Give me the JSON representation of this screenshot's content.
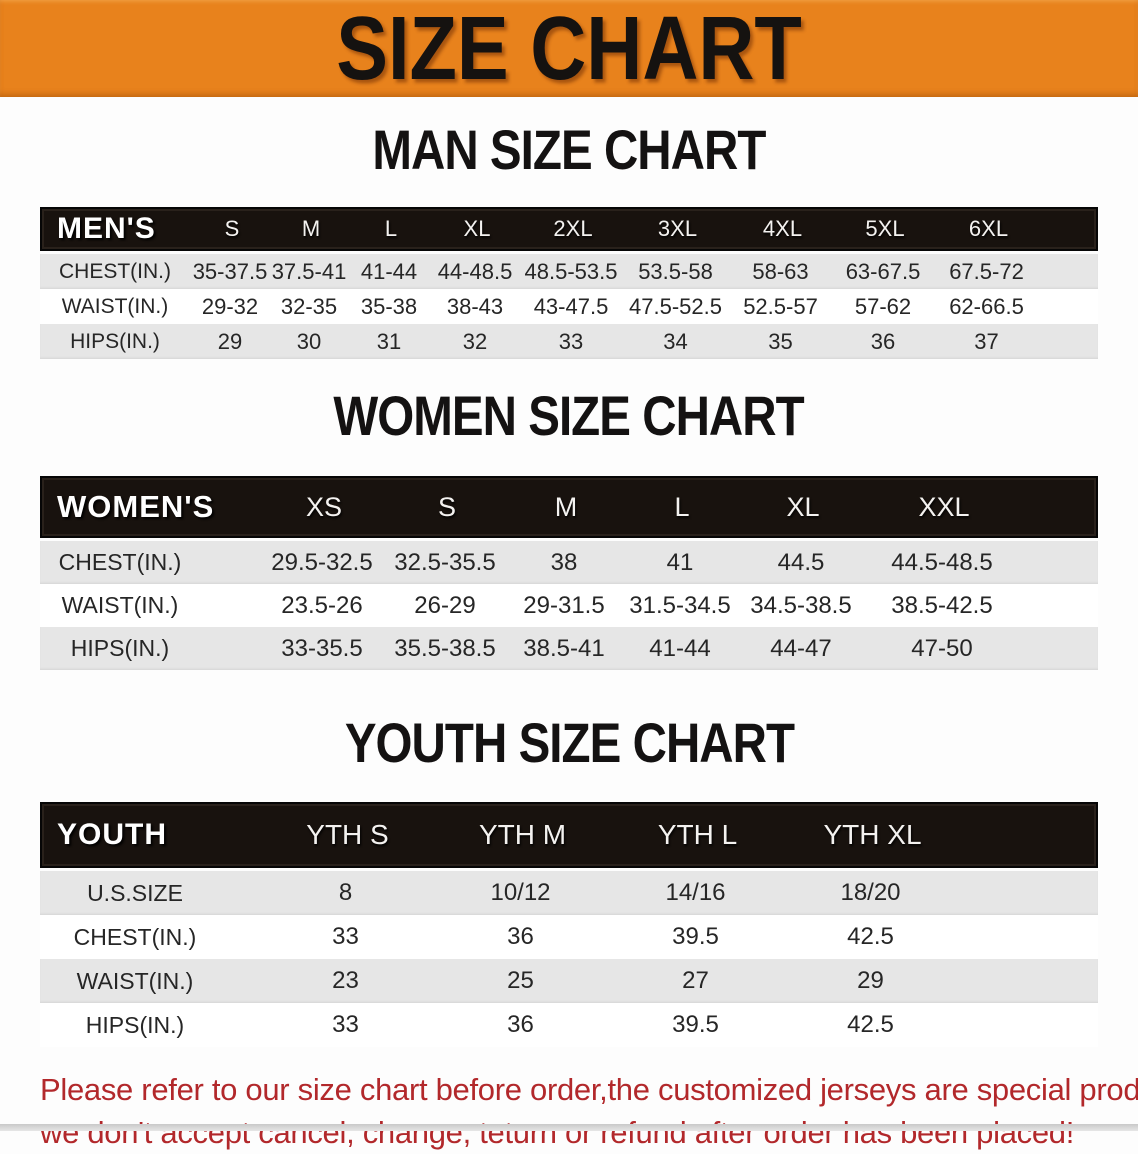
{
  "banner": {
    "title": "SIZE CHART"
  },
  "theme": {
    "accent": "#e8821c",
    "table_header_bg": "#18120e",
    "row_shade": "#e6e6e6",
    "warning_text": "#b2282b"
  },
  "sections": {
    "men": {
      "title": "MAN SIZE CHART",
      "table": {
        "corner_label": "MEN'S",
        "columns": [
          "S",
          "M",
          "L",
          "XL",
          "2XL",
          "3XL",
          "4XL",
          "5XL",
          "6XL"
        ],
        "rows": [
          {
            "label": "CHEST(IN.)",
            "values": [
              "35-37.5",
              "37.5-41",
              "41-44",
              "44-48.5",
              "48.5-53.5",
              "53.5-58",
              "58-63",
              "63-67.5",
              "67.5-72"
            ]
          },
          {
            "label": "WAIST(IN.)",
            "values": [
              "29-32",
              "32-35",
              "35-38",
              "38-43",
              "43-47.5",
              "47.5-52.5",
              "52.5-57",
              "57-62",
              "62-66.5"
            ]
          },
          {
            "label": "HIPS(IN.)",
            "values": [
              "29",
              "30",
              "31",
              "32",
              "33",
              "34",
              "35",
              "36",
              "37"
            ]
          }
        ]
      }
    },
    "women": {
      "title": "WOMEN SIZE CHART",
      "table": {
        "corner_label": "WOMEN'S",
        "columns": [
          "XS",
          "S",
          "M",
          "L",
          "XL",
          "XXL"
        ],
        "rows": [
          {
            "label": "CHEST(IN.)",
            "values": [
              "29.5-32.5",
              "32.5-35.5",
              "38",
              "41",
              "44.5",
              "44.5-48.5"
            ]
          },
          {
            "label": "WAIST(IN.)",
            "values": [
              "23.5-26",
              "26-29",
              "29-31.5",
              "31.5-34.5",
              "34.5-38.5",
              "38.5-42.5"
            ]
          },
          {
            "label": "HIPS(IN.)",
            "values": [
              "33-35.5",
              "35.5-38.5",
              "38.5-41",
              "41-44",
              "44-47",
              "47-50"
            ]
          }
        ]
      }
    },
    "youth": {
      "title": "YOUTH SIZE CHART",
      "table": {
        "corner_label": "YOUTH",
        "columns": [
          "YTH S",
          "YTH M",
          "YTH L",
          "YTH XL"
        ],
        "rows": [
          {
            "label": "U.S.SIZE",
            "values": [
              "8",
              "10/12",
              "14/16",
              "18/20"
            ]
          },
          {
            "label": "CHEST(IN.)",
            "values": [
              "33",
              "36",
              "39.5",
              "42.5"
            ]
          },
          {
            "label": "WAIST(IN.)",
            "values": [
              "23",
              "25",
              "27",
              "29"
            ]
          },
          {
            "label": "HIPS(IN.)",
            "values": [
              "33",
              "36",
              "39.5",
              "42.5"
            ]
          }
        ]
      }
    }
  },
  "footer": {
    "lines": [
      "Please refer to our size chart before order,the customized jerseys are special products,",
      "we don't accept cancel, change, teturn or refund after order has been placed!"
    ]
  }
}
